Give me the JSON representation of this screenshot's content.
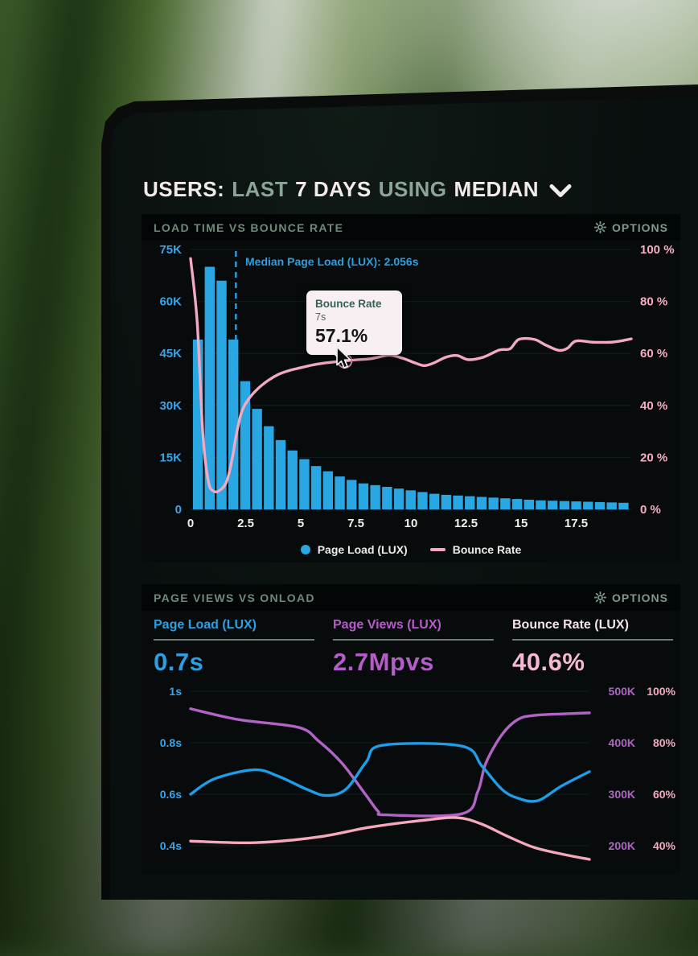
{
  "photo": {
    "backdrop": "blurred green plant leaves and bright window light behind a dark laptop screen"
  },
  "header": {
    "title_parts": [
      "USERS:",
      "LAST",
      "7 DAYS",
      "USING",
      "MEDIAN"
    ],
    "dropdown_icon": "chevron-down-icon"
  },
  "panel1": {
    "title": "LOAD TIME VS BOUNCE RATE",
    "options_label": "OPTIONS",
    "options_icon": "gear-icon"
  },
  "panel2": {
    "title": "PAGE VIEWS VS ONLOAD",
    "options_label": "OPTIONS",
    "options_icon": "gear-icon"
  },
  "tooltip": {
    "series": "Bounce Rate",
    "x": "7s",
    "value": "57.1%"
  },
  "legend": {
    "items": [
      {
        "label": "Page Load (LUX)",
        "marker": "dot",
        "color": "#29a7e3"
      },
      {
        "label": "Bounce Rate",
        "marker": "dash",
        "color": "#f4a9c3"
      }
    ]
  },
  "metrics": [
    {
      "label": "Page Load (LUX)",
      "value": "0.7s",
      "color": "#2d9fe3"
    },
    {
      "label": "Page Views (LUX)",
      "value": "2.7Mpvs",
      "color": "#b45cc8"
    },
    {
      "label": "Bounce Rate (LUX)",
      "value": "40.6%",
      "color": "#f5b9d3",
      "label_color": "#f3e4ec"
    }
  ],
  "colors": {
    "screen_background": "#090f0e",
    "panel": "#070b0c",
    "panel_header": "#030607",
    "blue": "#29a7e3",
    "pink": "#f4a9c3",
    "purple": "#b264c6",
    "sage_text": "#6d8a7b",
    "white_text": "#f3ebea"
  },
  "chart_data": [
    {
      "type": "bar",
      "combo": "histogram with overlaid line",
      "title": "LOAD TIME VS BOUNCE RATE",
      "x": {
        "unit": "seconds",
        "ticks": [
          0,
          2.5,
          5,
          7.5,
          10,
          12.5,
          15,
          17.5
        ],
        "range": [
          0,
          20
        ]
      },
      "y_left": {
        "name": "users",
        "ticks": [
          "75K",
          "60K",
          "45K",
          "30K",
          "15K",
          "0"
        ],
        "range_k": [
          0,
          75
        ]
      },
      "y_right": {
        "name": "bounce rate",
        "ticks": [
          "100 %",
          "80 %",
          "60 %",
          "40 %",
          "20 %",
          "0 %"
        ],
        "range_pct": [
          0,
          100
        ]
      },
      "bars": {
        "name": "Page Load (LUX)",
        "color": "#29a7e3",
        "bin_width_s": 0.5,
        "bins_s": [
          0,
          0.5,
          1,
          1.5,
          2,
          2.5,
          3,
          3.5,
          4,
          4.5,
          5,
          5.5,
          6,
          6.5,
          7,
          7.5,
          8,
          8.5,
          9,
          9.5,
          10,
          10.5,
          11,
          11.5,
          12,
          12.5,
          13,
          13.5,
          14,
          14.5,
          15,
          15.5,
          16,
          16.5,
          17,
          17.5,
          18
        ],
        "users_k": [
          49,
          70,
          66,
          49,
          37,
          29,
          24,
          20,
          17,
          14.5,
          12.5,
          11,
          9.5,
          8.5,
          7.5,
          7,
          6.5,
          6,
          5.5,
          5,
          4.5,
          4.2,
          4,
          3.8,
          3.6,
          3.4,
          3.2,
          3,
          2.8,
          2.6,
          2.5,
          2.4,
          2.3,
          2.2,
          2.1,
          2,
          1.9
        ]
      },
      "line": {
        "name": "Bounce Rate",
        "color": "#f4a9c3",
        "points_s_pct": [
          [
            0,
            96.5
          ],
          [
            0.3,
            72
          ],
          [
            0.55,
            30
          ],
          [
            0.8,
            11
          ],
          [
            1.05,
            7
          ],
          [
            1.35,
            7.5
          ],
          [
            1.65,
            11
          ],
          [
            1.9,
            20
          ],
          [
            2.06,
            28
          ],
          [
            2.3,
            37
          ],
          [
            2.6,
            42
          ],
          [
            3,
            46
          ],
          [
            3.5,
            49.5
          ],
          [
            4,
            52
          ],
          [
            4.5,
            53.5
          ],
          [
            5,
            54.5
          ],
          [
            5.5,
            55.5
          ],
          [
            6,
            56.2
          ],
          [
            6.5,
            56.7
          ],
          [
            7,
            57.1
          ],
          [
            7.6,
            57.6
          ],
          [
            8.2,
            58
          ],
          [
            9,
            59.3
          ],
          [
            9.6,
            58.2
          ],
          [
            10.2,
            56.3
          ],
          [
            10.6,
            55.3
          ],
          [
            11,
            56.2
          ],
          [
            11.6,
            58.6
          ],
          [
            12.1,
            59.2
          ],
          [
            12.6,
            57.6
          ],
          [
            13.3,
            58.6
          ],
          [
            14,
            61.3
          ],
          [
            14.5,
            61.8
          ],
          [
            14.9,
            65.4
          ],
          [
            15.6,
            65.4
          ],
          [
            16.1,
            63.3
          ],
          [
            16.7,
            61.2
          ],
          [
            17.1,
            62
          ],
          [
            17.5,
            64.8
          ],
          [
            18.3,
            64.3
          ],
          [
            19.2,
            64.4
          ],
          [
            20,
            65.6
          ]
        ]
      },
      "median_line": {
        "label": "Median Page Load (LUX): 2.056s",
        "x_s": 2.056
      },
      "hover_point": {
        "x_s": 7,
        "bounce_pct": 57.1
      }
    },
    {
      "type": "line",
      "title": "PAGE VIEWS VS ONLOAD",
      "x": {
        "range_pct": [
          0,
          100
        ],
        "ticks": []
      },
      "axes": {
        "onload_s": {
          "side": "left",
          "ticks": [
            "1s",
            "0.8s",
            "0.6s",
            "0.4s"
          ],
          "range": [
            0.4,
            1.0
          ]
        },
        "views_k": {
          "side": "right",
          "ticks": [
            "500K",
            "400K",
            "300K",
            "200K"
          ],
          "range": [
            200,
            500
          ]
        },
        "bounce_pct": {
          "side": "right",
          "ticks": [
            "100%",
            "80%",
            "60%",
            "40%"
          ],
          "range": [
            40,
            100
          ]
        }
      },
      "series": [
        {
          "name": "Page Views (LUX)",
          "axis": "views_k",
          "color": "#b264c6",
          "points": [
            [
              0,
              466
            ],
            [
              12,
              445
            ],
            [
              27,
              430
            ],
            [
              32,
              404
            ],
            [
              38,
              360
            ],
            [
              44,
              298
            ],
            [
              47,
              267
            ],
            [
              49,
              260
            ],
            [
              68,
              262
            ],
            [
              72,
              305
            ],
            [
              74,
              360
            ],
            [
              78,
              415
            ],
            [
              82,
              445
            ],
            [
              86,
              453
            ],
            [
              93,
              456
            ],
            [
              100,
              458
            ]
          ]
        },
        {
          "name": "Page Load (LUX)",
          "axis": "onload_s",
          "color": "#1e9de8",
          "points": [
            [
              0,
              0.6
            ],
            [
              6,
              0.66
            ],
            [
              16,
              0.695
            ],
            [
              22,
              0.67
            ],
            [
              29,
              0.62
            ],
            [
              34,
              0.595
            ],
            [
              39,
              0.62
            ],
            [
              44,
              0.725
            ],
            [
              48,
              0.79
            ],
            [
              68,
              0.787
            ],
            [
              73,
              0.71
            ],
            [
              78,
              0.62
            ],
            [
              82,
              0.585
            ],
            [
              87,
              0.575
            ],
            [
              93,
              0.632
            ],
            [
              100,
              0.688
            ]
          ]
        },
        {
          "name": "Bounce Rate (LUX)",
          "axis": "bounce_pct",
          "color": "#f6a9bd",
          "points": [
            [
              0,
              41.8
            ],
            [
              16,
              41.2
            ],
            [
              32,
              43.4
            ],
            [
              45,
              47.2
            ],
            [
              59,
              50
            ],
            [
              67,
              50.9
            ],
            [
              73,
              48.4
            ],
            [
              79,
              44
            ],
            [
              86,
              39.4
            ],
            [
              93,
              36.8
            ],
            [
              100,
              34.7
            ]
          ]
        }
      ]
    }
  ]
}
